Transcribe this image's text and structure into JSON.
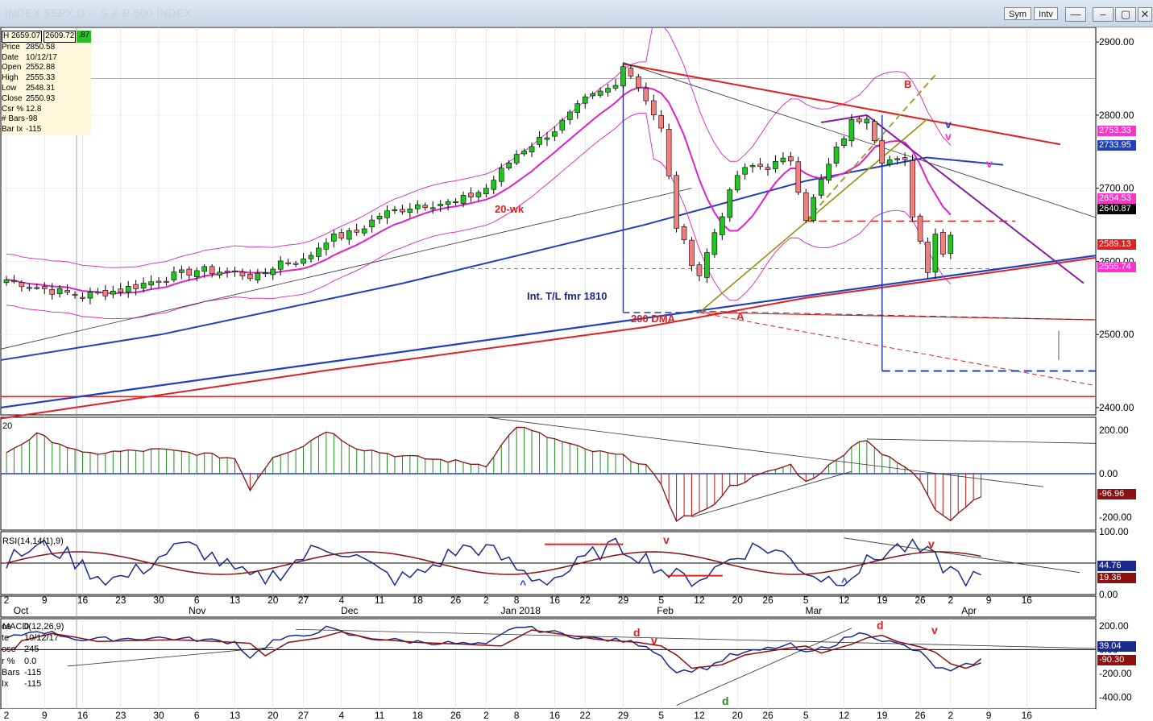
{
  "window": {
    "title": "INDEX $SPX,D  -- S & P 500 INDEX",
    "sym_label": "Sym",
    "intv_label": "Intv",
    "min_icon": "minimize-icon",
    "max_icon": "maximize-icon",
    "close_icon": "close-icon"
  },
  "info_box": {
    "header": [
      "H 2659.07",
      "2609.72",
      ".87"
    ],
    "rows": [
      {
        "k": "Price",
        "v": "2850.58"
      },
      {
        "k": "Date",
        "v": "10/12/17"
      },
      {
        "k": "Open",
        "v": "2552.88"
      },
      {
        "k": "High",
        "v": "2555.33"
      },
      {
        "k": "Low",
        "v": "2548.31"
      },
      {
        "k": "Close",
        "v": "2550.93"
      },
      {
        "k": "Csr %",
        "v": "12.8"
      },
      {
        "k": "# Bars",
        "v": "-98"
      },
      {
        "k": "Bar Ix",
        "v": "-115"
      }
    ]
  },
  "macd_info": {
    "rows": [
      {
        "k": "ce",
        "v": "0"
      },
      {
        "k": "te",
        "v": "10/12/17"
      },
      {
        "k": "ose",
        "v": "245"
      },
      {
        "k": "r %",
        "v": "0.0"
      },
      {
        "k": "Bars",
        "v": "-115"
      },
      {
        "k": "Ix",
        "v": "-115"
      }
    ]
  },
  "price_tags": [
    {
      "text": "2753.33",
      "bg": "#ff33cc",
      "fg": "#ffffff",
      "value": 2753.33
    },
    {
      "text": "2733.95",
      "bg": "#1f3fbf",
      "fg": "#ffffff",
      "value": 2733.95
    },
    {
      "text": "2654.53",
      "bg": "#ff33cc",
      "fg": "#ffffff",
      "value": 2654.53
    },
    {
      "text": "2640.87",
      "bg": "#000000",
      "fg": "#ffffff",
      "value": 2640.87
    },
    {
      "text": "2589.13",
      "bg": "#e02020",
      "fg": "#ffffff",
      "value": 2589.13
    },
    {
      "text": "2555.74",
      "bg": "#ff33cc",
      "fg": "#ffffff",
      "value": 2555.74
    }
  ],
  "osc_tags": [
    {
      "text": "-96.96",
      "bg": "#8b1010",
      "fg": "#ffffff",
      "value": -96.96
    },
    {
      "text": "44.76",
      "bg": "#1a2a8c",
      "fg": "#ffffff",
      "value": 44.76
    },
    {
      "text": "19.36",
      "bg": "#8b1010",
      "fg": "#ffffff",
      "value": 19.36
    },
    {
      "text": "39.04",
      "bg": "#1a2a8c",
      "fg": "#ffffff",
      "value": 39.04
    },
    {
      "text": "-90.30",
      "bg": "#8b1010",
      "fg": "#ffffff",
      "value": -90.3
    }
  ],
  "chart_data": {
    "type": "candlestick",
    "title": "INDEX $SPX,D  -- S & P 500 INDEX",
    "price_axis": {
      "min": 2390,
      "max": 2920,
      "ticks": [
        2900,
        2800,
        2700,
        2600,
        2500,
        2400
      ],
      "tick_labels": [
        "2900.00",
        "2800.00",
        "2700.00",
        "2600.00",
        "2500.00",
        "2400.00"
      ]
    },
    "x_labels": [
      {
        "day": "2",
        "bar": 0
      },
      {
        "day": "9",
        "bar": 5
      },
      {
        "day": "16",
        "bar": 10
      },
      {
        "day": "23",
        "bar": 15
      },
      {
        "day": "30",
        "bar": 20
      },
      {
        "day": "6",
        "bar": 25
      },
      {
        "day": "13",
        "bar": 30
      },
      {
        "day": "20",
        "bar": 35
      },
      {
        "day": "27",
        "bar": 39
      },
      {
        "day": "4",
        "bar": 44
      },
      {
        "day": "11",
        "bar": 49
      },
      {
        "day": "18",
        "bar": 54
      },
      {
        "day": "26",
        "bar": 59
      },
      {
        "day": "2",
        "bar": 63
      },
      {
        "day": "8",
        "bar": 67
      },
      {
        "day": "16",
        "bar": 72
      },
      {
        "day": "22",
        "bar": 76
      },
      {
        "day": "29",
        "bar": 81
      },
      {
        "day": "5",
        "bar": 86
      },
      {
        "day": "12",
        "bar": 91
      },
      {
        "day": "20",
        "bar": 96
      },
      {
        "day": "26",
        "bar": 100
      },
      {
        "day": "5",
        "bar": 105
      },
      {
        "day": "12",
        "bar": 110
      },
      {
        "day": "19",
        "bar": 115
      },
      {
        "day": "26",
        "bar": 120
      },
      {
        "day": "2",
        "bar": 124
      },
      {
        "day": "9",
        "bar": 129
      },
      {
        "day": "16",
        "bar": 134
      }
    ],
    "month_labels": [
      {
        "text": "Oct",
        "bar": 0.5
      },
      {
        "text": "Nov",
        "bar": 23.5
      },
      {
        "text": "Dec",
        "bar": 43.5
      },
      {
        "text": "Jan 2018",
        "bar": 64.5
      },
      {
        "text": "Feb",
        "bar": 85
      },
      {
        "text": "Mar",
        "bar": 104.5
      },
      {
        "text": "Apr",
        "bar": 125
      }
    ],
    "annotations": [
      {
        "text": "20-wk",
        "color": "#e02020"
      },
      {
        "text": "Int. T/L fmr 1810",
        "color": "#1a2a8c"
      },
      {
        "text": "200 DMA",
        "color": "#e02020"
      },
      {
        "text": "A",
        "color": "#e02020"
      },
      {
        "text": "B",
        "color": "#e02020"
      },
      {
        "text": "v",
        "color": "#2040d0"
      },
      {
        "text": "v",
        "color": "#ff33cc"
      },
      {
        "text": "v",
        "color": "#ff33cc"
      }
    ],
    "osc1_axis": {
      "min": -260,
      "max": 260,
      "ticks": [
        200,
        0,
        -200
      ],
      "tick_labels": [
        "200.00",
        "0.00",
        "-200.00"
      ]
    },
    "rsi_axis": {
      "min": 0,
      "max": 100,
      "ticks": [
        100,
        50,
        0
      ],
      "tick_labels": [
        "100.00",
        "50.00",
        "0.00"
      ],
      "label": "RSI(14,14(1),9)"
    },
    "rsi_marks": [
      {
        "text": "v",
        "color": "#e02020"
      },
      {
        "text": "v",
        "color": "#e02020"
      },
      {
        "text": "^",
        "color": "#2040d0"
      },
      {
        "text": "^",
        "color": "#2040d0"
      }
    ],
    "macd_axis": {
      "min": -500,
      "max": 260,
      "ticks": [
        200,
        0,
        -200,
        -400
      ],
      "tick_labels": [
        "200.00",
        "0.00",
        "-200.00",
        "-400.00"
      ],
      "label": "MACD(12,26,9)"
    },
    "macd_marks": [
      {
        "text": "d",
        "color": "#e02020"
      },
      {
        "text": "v",
        "color": "#e02020"
      },
      {
        "text": "d",
        "color": "#e02020"
      },
      {
        "text": "v",
        "color": "#e02020"
      },
      {
        "text": "d",
        "color": "#2a8a2a"
      }
    ],
    "candles_anchor": [
      [
        0,
        2575
      ],
      [
        6,
        2560
      ],
      [
        10,
        2553
      ],
      [
        15,
        2561
      ],
      [
        20,
        2575
      ],
      [
        25,
        2588
      ],
      [
        30,
        2585
      ],
      [
        33,
        2578
      ],
      [
        36,
        2600
      ],
      [
        39,
        2600
      ],
      [
        42,
        2630
      ],
      [
        46,
        2640
      ],
      [
        49,
        2663
      ],
      [
        54,
        2678
      ],
      [
        59,
        2680
      ],
      [
        63,
        2700
      ],
      [
        67,
        2747
      ],
      [
        72,
        2780
      ],
      [
        76,
        2820
      ],
      [
        80,
        2840
      ],
      [
        81,
        2872
      ],
      [
        84,
        2823
      ],
      [
        86,
        2780
      ],
      [
        88,
        2648
      ],
      [
        90,
        2600
      ],
      [
        91,
        2582
      ],
      [
        93,
        2640
      ],
      [
        96,
        2718
      ],
      [
        98,
        2730
      ],
      [
        100,
        2730
      ],
      [
        103,
        2740
      ],
      [
        105,
        2660
      ],
      [
        107,
        2710
      ],
      [
        109,
        2752
      ],
      [
        111,
        2790
      ],
      [
        113,
        2800
      ],
      [
        115,
        2740
      ],
      [
        118,
        2735
      ],
      [
        119,
        2665
      ],
      [
        121,
        2590
      ],
      [
        122,
        2640
      ],
      [
        123,
        2610
      ],
      [
        124,
        2641
      ]
    ]
  }
}
